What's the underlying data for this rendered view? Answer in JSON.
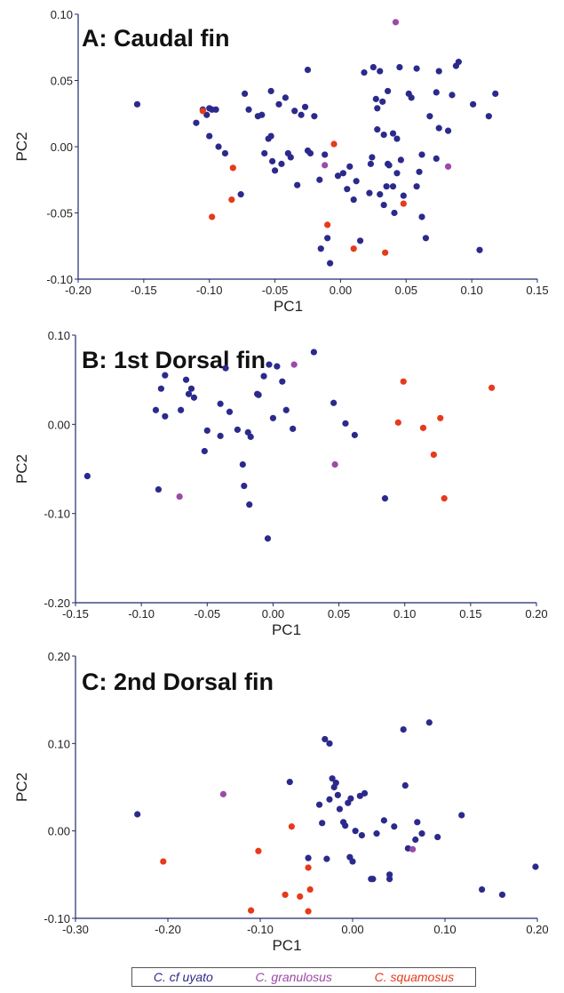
{
  "colors": {
    "C. cf uyato": "#2b2a8c",
    "C. granulosus": "#9b4aa6",
    "C. squamosus": "#e63a1c",
    "axis": "#1f2a6e"
  },
  "legend": [
    {
      "label": "C. cf uyato",
      "series": "C. cf uyato"
    },
    {
      "label": "C. granulosus",
      "series": "C. granulosus"
    },
    {
      "label": "C. squamosus",
      "series": "C. squamosus"
    }
  ],
  "chart_data": [
    {
      "type": "scatter",
      "title": "A: Caudal fin",
      "xlabel": "PC1",
      "ylabel": "PC2",
      "xlim": [
        -0.2,
        0.15
      ],
      "ylim": [
        -0.1,
        0.1
      ],
      "xticks": [
        "-0.20",
        "-0.15",
        "-0.10",
        "-0.05",
        "0.00",
        "0.05",
        "0.10",
        "0.15"
      ],
      "yticks": [
        "-0.10",
        "-0.05",
        "0.00",
        "0.05",
        "0.10"
      ],
      "series": [
        {
          "name": "C. cf uyato",
          "points": [
            [
              -0.155,
              0.032
            ],
            [
              -0.11,
              0.018
            ],
            [
              -0.105,
              0.028
            ],
            [
              -0.1,
              0.029
            ],
            [
              -0.098,
              0.028
            ],
            [
              -0.102,
              0.024
            ],
            [
              -0.095,
              0.028
            ],
            [
              -0.1,
              0.008
            ],
            [
              -0.093,
              0.0
            ],
            [
              -0.088,
              -0.005
            ],
            [
              -0.076,
              -0.036
            ],
            [
              -0.073,
              0.04
            ],
            [
              -0.07,
              0.028
            ],
            [
              -0.06,
              0.024
            ],
            [
              -0.063,
              0.023
            ],
            [
              -0.058,
              -0.005
            ],
            [
              -0.055,
              0.006
            ],
            [
              -0.053,
              0.042
            ],
            [
              -0.053,
              0.008
            ],
            [
              -0.052,
              -0.011
            ],
            [
              -0.05,
              -0.018
            ],
            [
              -0.047,
              0.032
            ],
            [
              -0.045,
              -0.013
            ],
            [
              -0.042,
              0.037
            ],
            [
              -0.04,
              -0.005
            ],
            [
              -0.038,
              -0.008
            ],
            [
              -0.035,
              0.027
            ],
            [
              -0.033,
              -0.029
            ],
            [
              -0.03,
              0.024
            ],
            [
              -0.027,
              0.03
            ],
            [
              -0.025,
              -0.003
            ],
            [
              -0.023,
              -0.005
            ],
            [
              -0.025,
              0.058
            ],
            [
              -0.02,
              0.023
            ],
            [
              -0.016,
              -0.025
            ],
            [
              -0.015,
              -0.077
            ],
            [
              -0.012,
              -0.006
            ],
            [
              -0.01,
              -0.069
            ],
            [
              -0.008,
              -0.088
            ],
            [
              -0.002,
              -0.022
            ],
            [
              0.002,
              -0.02
            ],
            [
              0.005,
              -0.032
            ],
            [
              0.007,
              -0.015
            ],
            [
              0.01,
              -0.04
            ],
            [
              0.012,
              -0.026
            ],
            [
              0.015,
              -0.071
            ],
            [
              0.018,
              0.056
            ],
            [
              0.022,
              -0.035
            ],
            [
              0.023,
              -0.013
            ],
            [
              0.025,
              0.06
            ],
            [
              0.027,
              0.036
            ],
            [
              0.028,
              0.013
            ],
            [
              0.03,
              -0.036
            ],
            [
              0.03,
              0.057
            ],
            [
              0.032,
              0.034
            ],
            [
              0.033,
              0.009
            ],
            [
              0.033,
              -0.044
            ],
            [
              0.035,
              -0.03
            ],
            [
              0.036,
              0.042
            ],
            [
              0.036,
              -0.013
            ],
            [
              0.037,
              -0.014
            ],
            [
              0.04,
              0.01
            ],
            [
              0.041,
              -0.05
            ],
            [
              0.04,
              -0.03
            ],
            [
              0.043,
              0.006
            ],
            [
              0.043,
              -0.02
            ],
            [
              0.045,
              0.06
            ],
            [
              0.046,
              -0.01
            ],
            [
              0.048,
              -0.037
            ],
            [
              0.052,
              0.04
            ],
            [
              0.054,
              0.037
            ],
            [
              0.058,
              -0.03
            ],
            [
              0.06,
              -0.019
            ],
            [
              0.062,
              -0.053
            ],
            [
              0.062,
              -0.006
            ],
            [
              0.065,
              -0.069
            ],
            [
              0.068,
              0.023
            ],
            [
              0.073,
              0.041
            ],
            [
              0.073,
              -0.009
            ],
            [
              0.075,
              0.057
            ],
            [
              0.075,
              0.014
            ],
            [
              0.082,
              0.012
            ],
            [
              0.085,
              0.039
            ],
            [
              0.088,
              0.061
            ],
            [
              0.09,
              0.064
            ],
            [
              0.101,
              0.032
            ],
            [
              0.106,
              -0.078
            ],
            [
              0.113,
              0.023
            ],
            [
              0.118,
              0.04
            ],
            [
              0.058,
              0.059
            ],
            [
              0.028,
              0.029
            ],
            [
              0.024,
              -0.008
            ]
          ]
        },
        {
          "name": "C. granulosus",
          "points": [
            [
              0.042,
              0.094
            ],
            [
              -0.012,
              -0.014
            ],
            [
              0.082,
              -0.015
            ]
          ]
        },
        {
          "name": "C. squamosus",
          "points": [
            [
              -0.105,
              0.027
            ],
            [
              -0.082,
              -0.016
            ],
            [
              -0.083,
              -0.04
            ],
            [
              -0.098,
              -0.053
            ],
            [
              -0.005,
              0.002
            ],
            [
              -0.01,
              -0.059
            ],
            [
              0.01,
              -0.077
            ],
            [
              0.034,
              -0.08
            ],
            [
              0.048,
              -0.043
            ]
          ]
        }
      ]
    },
    {
      "type": "scatter",
      "title": "B: 1st Dorsal fin",
      "xlabel": "PC1",
      "ylabel": "PC2",
      "xlim": [
        -0.15,
        0.2
      ],
      "ylim": [
        -0.2,
        0.1
      ],
      "xticks": [
        "-0.15",
        "-0.10",
        "-0.05",
        "0.00",
        "0.05",
        "0.10",
        "0.15",
        "0.20"
      ],
      "yticks": [
        "-0.20",
        "-0.10",
        "0.00",
        "0.10"
      ],
      "series": [
        {
          "name": "C. cf uyato",
          "points": [
            [
              -0.141,
              -0.058
            ],
            [
              -0.089,
              0.016
            ],
            [
              -0.087,
              -0.073
            ],
            [
              -0.085,
              0.04
            ],
            [
              -0.082,
              0.055
            ],
            [
              -0.082,
              0.009
            ],
            [
              -0.07,
              0.016
            ],
            [
              -0.066,
              0.05
            ],
            [
              -0.064,
              0.034
            ],
            [
              -0.062,
              0.04
            ],
            [
              -0.06,
              0.03
            ],
            [
              -0.052,
              -0.03
            ],
            [
              -0.05,
              -0.007
            ],
            [
              -0.04,
              0.023
            ],
            [
              -0.04,
              -0.013
            ],
            [
              -0.036,
              0.063
            ],
            [
              -0.033,
              0.014
            ],
            [
              -0.027,
              -0.006
            ],
            [
              -0.023,
              -0.045
            ],
            [
              -0.022,
              -0.069
            ],
            [
              -0.019,
              -0.009
            ],
            [
              -0.018,
              -0.09
            ],
            [
              -0.017,
              -0.014
            ],
            [
              -0.012,
              0.034
            ],
            [
              -0.011,
              0.033
            ],
            [
              -0.007,
              0.054
            ],
            [
              -0.004,
              -0.128
            ],
            [
              -0.003,
              0.067
            ],
            [
              0.0,
              0.007
            ],
            [
              0.003,
              0.065
            ],
            [
              0.007,
              0.048
            ],
            [
              0.01,
              0.016
            ],
            [
              0.015,
              -0.005
            ],
            [
              0.031,
              0.081
            ],
            [
              0.046,
              0.024
            ],
            [
              0.055,
              0.001
            ],
            [
              0.062,
              -0.012
            ],
            [
              0.085,
              -0.083
            ]
          ]
        },
        {
          "name": "C. granulosus",
          "points": [
            [
              0.016,
              0.067
            ],
            [
              -0.071,
              -0.081
            ],
            [
              0.047,
              -0.045
            ]
          ]
        },
        {
          "name": "C. squamosus",
          "points": [
            [
              0.099,
              0.048
            ],
            [
              0.095,
              0.002
            ],
            [
              0.114,
              -0.004
            ],
            [
              0.127,
              0.007
            ],
            [
              0.122,
              -0.034
            ],
            [
              0.13,
              -0.083
            ],
            [
              0.166,
              0.041
            ]
          ]
        }
      ]
    },
    {
      "type": "scatter",
      "title": "C: 2nd Dorsal fin",
      "xlabel": "PC1",
      "ylabel": "PC2",
      "xlim": [
        -0.3,
        0.2
      ],
      "ylim": [
        -0.1,
        0.2
      ],
      "xticks": [
        "-0.30",
        "-0.20",
        "-0.10",
        "0.00",
        "0.10",
        "0.20"
      ],
      "yticks": [
        "-0.10",
        "0.00",
        "0.10",
        "0.20"
      ],
      "series": [
        {
          "name": "C. cf uyato",
          "points": [
            [
              -0.233,
              0.019
            ],
            [
              -0.068,
              0.056
            ],
            [
              -0.048,
              -0.031
            ],
            [
              -0.036,
              0.03
            ],
            [
              -0.033,
              0.009
            ],
            [
              -0.03,
              0.105
            ],
            [
              -0.028,
              -0.032
            ],
            [
              -0.025,
              0.036
            ],
            [
              -0.025,
              0.1
            ],
            [
              -0.022,
              0.06
            ],
            [
              -0.02,
              0.05
            ],
            [
              -0.018,
              0.055
            ],
            [
              -0.016,
              0.041
            ],
            [
              -0.014,
              0.025
            ],
            [
              -0.01,
              0.01
            ],
            [
              -0.008,
              0.006
            ],
            [
              -0.005,
              0.032
            ],
            [
              -0.002,
              0.037
            ],
            [
              0.0,
              -0.035
            ],
            [
              -0.003,
              -0.03
            ],
            [
              0.003,
              0.0
            ],
            [
              0.008,
              0.04
            ],
            [
              0.01,
              -0.005
            ],
            [
              0.013,
              0.043
            ],
            [
              0.02,
              -0.055
            ],
            [
              0.022,
              -0.055
            ],
            [
              0.026,
              -0.003
            ],
            [
              0.034,
              0.012
            ],
            [
              0.04,
              -0.055
            ],
            [
              0.04,
              -0.05
            ],
            [
              0.055,
              0.116
            ],
            [
              0.057,
              0.052
            ],
            [
              0.06,
              -0.02
            ],
            [
              0.068,
              -0.01
            ],
            [
              0.07,
              0.01
            ],
            [
              0.075,
              -0.003
            ],
            [
              0.083,
              0.124
            ],
            [
              0.092,
              -0.007
            ],
            [
              0.118,
              0.018
            ],
            [
              0.14,
              -0.067
            ],
            [
              0.162,
              -0.073
            ],
            [
              0.198,
              -0.041
            ],
            [
              0.045,
              0.005
            ]
          ]
        },
        {
          "name": "C. granulosus",
          "points": [
            [
              -0.14,
              0.042
            ],
            [
              0.065,
              -0.021
            ]
          ]
        },
        {
          "name": "C. squamosus",
          "points": [
            [
              -0.205,
              -0.035
            ],
            [
              -0.102,
              -0.023
            ],
            [
              -0.066,
              0.005
            ],
            [
              -0.057,
              -0.075
            ],
            [
              -0.048,
              -0.042
            ],
            [
              -0.046,
              -0.067
            ],
            [
              -0.048,
              -0.092
            ],
            [
              -0.073,
              -0.073
            ],
            [
              -0.11,
              -0.091
            ]
          ]
        }
      ]
    }
  ]
}
